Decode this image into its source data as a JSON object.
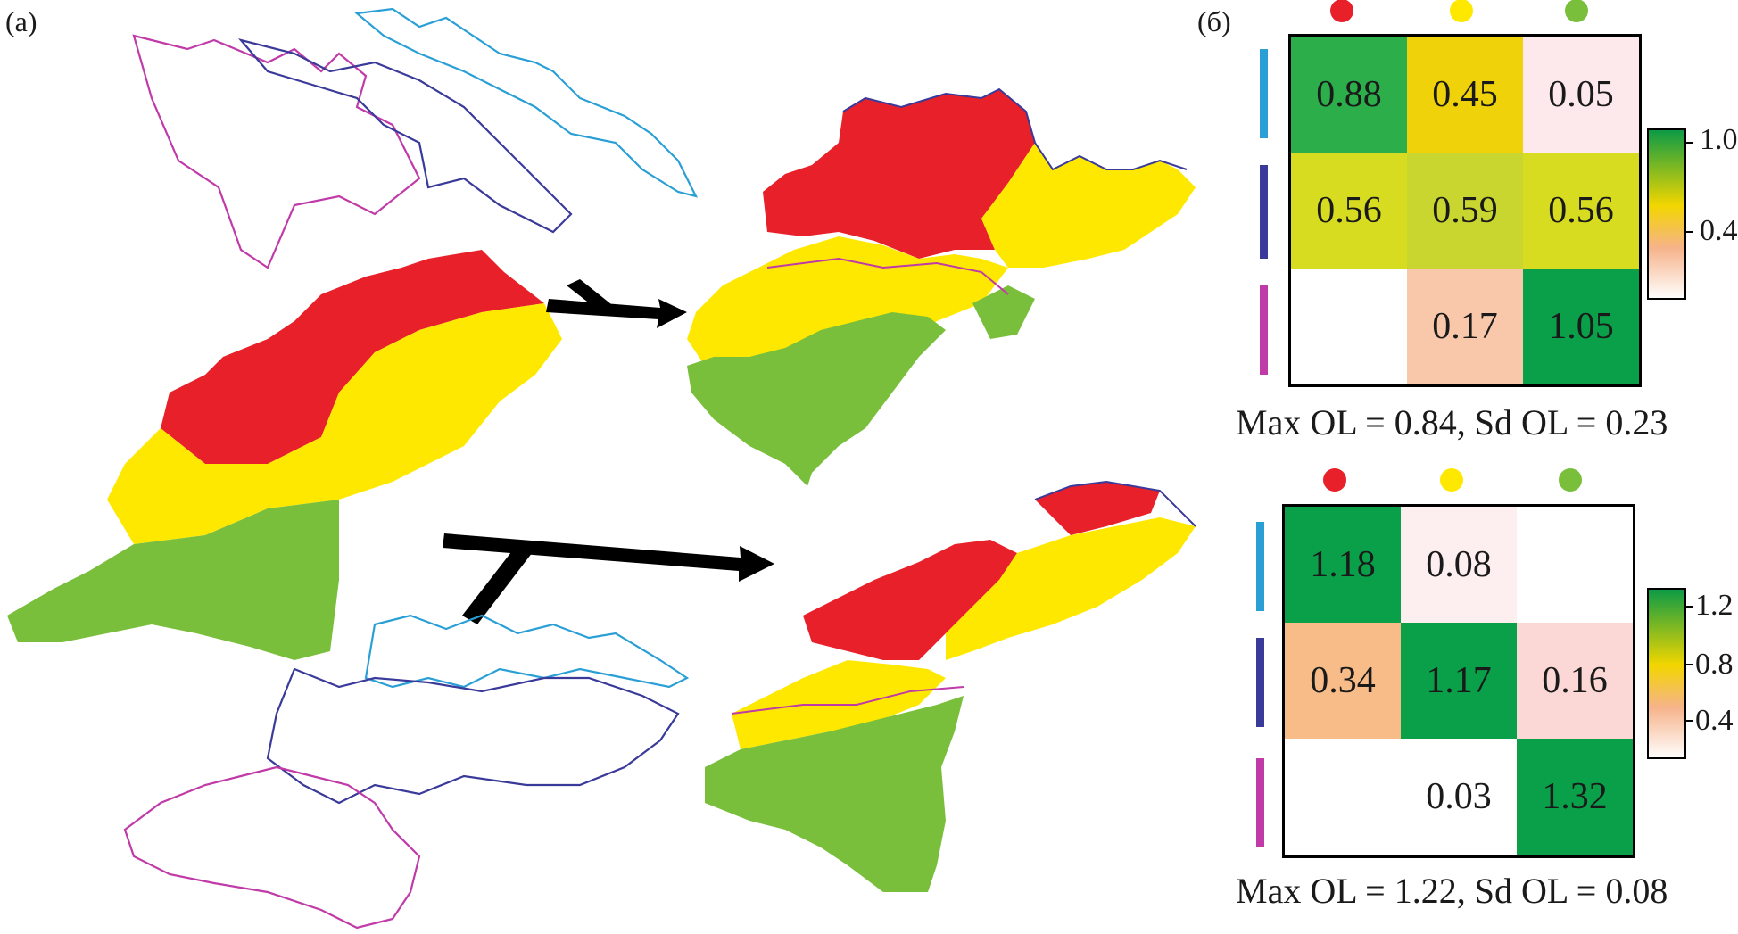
{
  "labels": {
    "a": "(a)",
    "b": "(б)"
  },
  "colors": {
    "red": "#e8202a",
    "yellow": "#ffe800",
    "green": "#79bf3c",
    "blue_line": "#2a9fd6",
    "navy_line": "#3a3a9a",
    "magenta_line": "#c03aa8"
  },
  "matrix1": {
    "rows": [
      [
        "0.88",
        "0.45",
        "0.05"
      ],
      [
        "0.56",
        "0.59",
        "0.56"
      ],
      [
        "",
        "0.17",
        "1.05"
      ]
    ],
    "colors": [
      [
        "#2cae4a",
        "#efd20a",
        "#fde8ec"
      ],
      [
        "#d8dc20",
        "#c9d630",
        "#d8dc20"
      ],
      [
        "#ffffff",
        "#f9c8aa",
        "#0aa04a"
      ]
    ],
    "stat": "Max OL = 0.84, Sd OL = 0.23",
    "scale_ticks": [
      "1.0",
      "0.4"
    ]
  },
  "matrix2": {
    "rows": [
      [
        "1.18",
        "0.08",
        ""
      ],
      [
        "0.34",
        "1.17",
        "0.16"
      ],
      [
        "",
        "0.03",
        "1.32"
      ]
    ],
    "colors": [
      [
        "#0aa04a",
        "#fdeef0",
        "#ffffff"
      ],
      [
        "#f7bc88",
        "#0aa04a",
        "#fbd8d6"
      ],
      [
        "#ffffff",
        "#ffffff",
        "#0aa04a"
      ]
    ],
    "stat": "Max OL = 1.22, Sd OL = 0.08",
    "scale_ticks": [
      "1.2",
      "0.8",
      "0.4"
    ]
  }
}
